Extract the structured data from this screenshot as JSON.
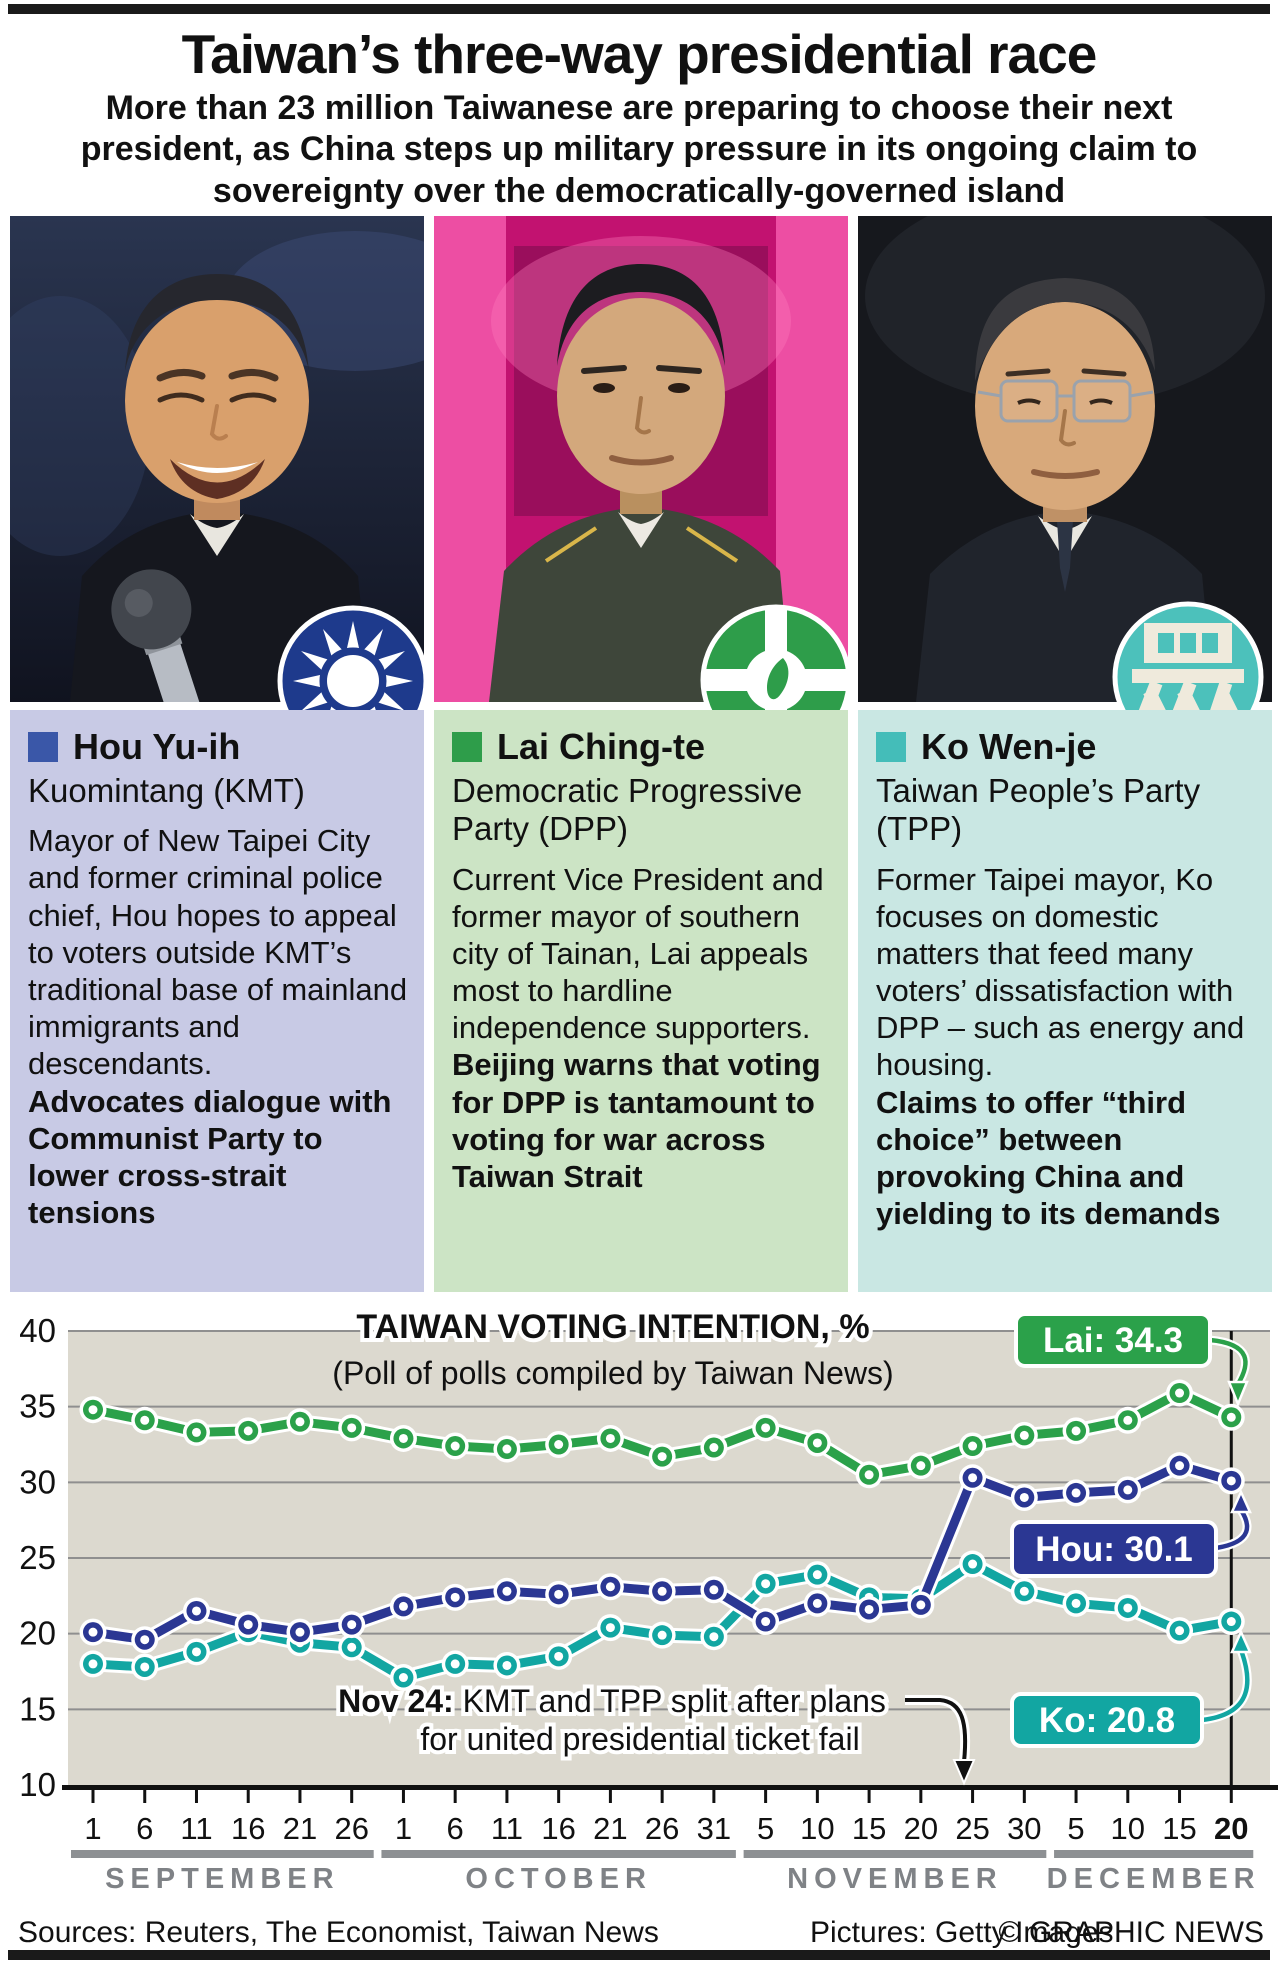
{
  "header": {
    "title": "Taiwan’s three-way presidential race",
    "subtitle": "More than 23 million Taiwanese are preparing to choose their next president, as China steps up military pressure in its ongoing claim to sovereignty over the democratically-governed island"
  },
  "candidates": [
    {
      "name": "Hou Yu-ih",
      "party": "Kuomintang (KMT)",
      "body": "Mayor of New Taipei City and former criminal police chief, Hou hopes to appeal to voters outside KMT’s traditional base of mainland immigrants and descendants.",
      "emphasis": "Advocates dialogue with Communist Party to lower cross-strait tensions",
      "party_color": "#1e3a8c",
      "bullet_color": "#3a57a8",
      "panel_bg": "#c8cae5",
      "logo_icon": "kmt-white-sun-logo"
    },
    {
      "name": "Lai Ching-te",
      "party": "Democratic Progressive Party (DPP)",
      "body": "Current Vice President and former mayor of southern city of Tainan, Lai appeals most to hardline independence supporters.",
      "emphasis": "Beijing warns that voting for DPP is tantamount to voting for war across Taiwan Strait",
      "party_color": "#2e9d4a",
      "bullet_color": "#2e9d4a",
      "panel_bg": "#cce4c5",
      "logo_icon": "dpp-taiwan-cross-logo"
    },
    {
      "name": "Ko Wen-je",
      "party": "Taiwan People’s Party (TPP)",
      "body": "Former Taipei mayor, Ko focuses on domestic matters that feed many voters’ dissatisfaction with DPP – such as energy and housing.",
      "emphasis": "Claims to offer “third choice” between provoking China and yielding to its demands",
      "party_color": "#4cc1bb",
      "bullet_color": "#44bdb9",
      "panel_bg": "#c9e7e3",
      "logo_icon": "tpp-zhong-character-logo"
    }
  ],
  "chart_data": {
    "type": "line",
    "title": "TAIWAN VOTING INTENTION, %",
    "subtitle": "(Poll of polls compiled by Taiwan News)",
    "ylim": [
      10,
      40
    ],
    "yticks": [
      40,
      35,
      30,
      25,
      20,
      15,
      10
    ],
    "grid": true,
    "legend_position": "inline-labels-right",
    "plot_bg": "#dcd9cf",
    "months": [
      {
        "label": "SEPTEMBER",
        "days": [
          1,
          6,
          11,
          16,
          21,
          26
        ]
      },
      {
        "label": "OCTOBER",
        "days": [
          1,
          6,
          11,
          16,
          21,
          26,
          31
        ]
      },
      {
        "label": "NOVEMBER",
        "days": [
          5,
          10,
          15,
          20,
          25,
          30
        ]
      },
      {
        "label": "DECEMBER",
        "days": [
          5,
          10,
          15,
          20
        ]
      }
    ],
    "series": [
      {
        "name": "Lai",
        "label": "Lai: 34.3",
        "final": 34.3,
        "color": "#2ba14a",
        "values": [
          34.8,
          34.1,
          33.3,
          33.4,
          34.0,
          33.6,
          32.9,
          32.4,
          32.2,
          32.5,
          32.9,
          31.7,
          32.3,
          33.6,
          32.6,
          30.5,
          31.1,
          32.4,
          33.1,
          33.4,
          34.1,
          35.9,
          34.3
        ]
      },
      {
        "name": "Ko",
        "label": "Ko: 20.8",
        "final": 20.8,
        "color": "#12a6a2",
        "values": [
          18.0,
          17.8,
          18.8,
          20.1,
          19.4,
          19.1,
          17.1,
          18.0,
          17.9,
          18.5,
          20.4,
          19.9,
          19.8,
          23.3,
          23.9,
          22.4,
          22.3,
          24.6,
          22.8,
          22.0,
          21.7,
          20.2,
          20.8
        ]
      },
      {
        "name": "Hou",
        "label": "Hou: 30.1",
        "final": 30.1,
        "color": "#2b3793",
        "values": [
          20.1,
          19.6,
          21.5,
          20.6,
          20.1,
          20.6,
          21.8,
          22.4,
          22.8,
          22.6,
          23.1,
          22.8,
          22.9,
          20.8,
          22.0,
          21.6,
          21.9,
          30.3,
          29.0,
          29.3,
          29.5,
          31.1,
          30.1
        ]
      }
    ],
    "annotation": {
      "prefix": "Nov 24:",
      "line1": " KMT and TPP split after plans",
      "line2": "for united presidential ticket fail"
    }
  },
  "footer": {
    "sources": "Sources: Reuters, The Economist, Taiwan News",
    "pictures": "Pictures: Getty Images",
    "credit": "© GRAPHIC NEWS"
  }
}
